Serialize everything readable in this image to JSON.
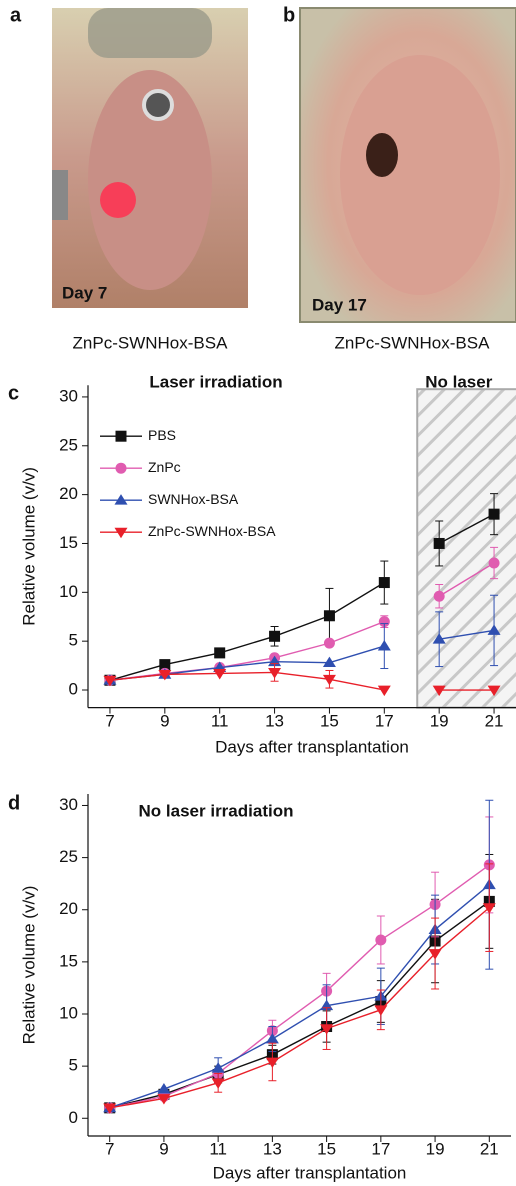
{
  "figure_panels": [
    {
      "label": "a",
      "day": "Day 7",
      "caption": "ZnPc-SWNHox-BSA"
    },
    {
      "label": "b",
      "day": "Day 17",
      "caption": "ZnPc-SWNHox-BSA"
    }
  ],
  "chart_data": [
    {
      "type": "line",
      "panel": "c",
      "title": "Laser irradiation",
      "x_label": "Days after transplantation",
      "y_label": "Relative volume (v/v)",
      "x": [
        7,
        9,
        11,
        13,
        15,
        17,
        19,
        21
      ],
      "xlim": [
        6.2,
        21.8
      ],
      "ylim": [
        -1.8,
        31.2
      ],
      "xticks": [
        7,
        9,
        11,
        13,
        15,
        17,
        19,
        21
      ],
      "yticks": [
        0,
        5,
        10,
        15,
        20,
        25,
        30
      ],
      "legend": "upper left",
      "shaded_region": {
        "label": "No laser",
        "from": 18.2
      },
      "series": [
        {
          "name": "PBS",
          "color": "#111111",
          "marker": "square",
          "values": [
            1,
            2.6,
            3.8,
            5.5,
            7.6,
            11,
            15,
            18
          ],
          "errors": [
            null,
            null,
            null,
            1,
            2.8,
            2.2,
            2.3,
            2.1
          ]
        },
        {
          "name": "ZnPc",
          "color": "#e05cb0",
          "marker": "circle",
          "values": [
            1,
            1.7,
            2.3,
            3.3,
            4.8,
            7,
            9.6,
            13
          ],
          "errors": [
            null,
            null,
            null,
            null,
            null,
            0.6,
            1.2,
            1.6
          ]
        },
        {
          "name": "SWNHox-BSA",
          "color": "#2f4fb0",
          "marker": "triangle-up",
          "values": [
            1,
            1.6,
            2.3,
            2.9,
            2.8,
            4.5,
            5.2,
            6.1
          ],
          "errors": [
            null,
            null,
            null,
            null,
            null,
            2.3,
            2.8,
            3.6
          ]
        },
        {
          "name": "ZnPc-SWNHox-BSA",
          "color": "#e8202a",
          "marker": "triangle-down",
          "values": [
            1,
            1.6,
            1.7,
            1.8,
            1.1,
            0,
            0,
            0
          ],
          "errors": [
            null,
            null,
            null,
            0.9,
            0.9,
            null,
            null,
            null
          ]
        }
      ]
    },
    {
      "type": "line",
      "panel": "d",
      "title": "No laser irradiation",
      "x_label": "Days after transplantation",
      "y_label": "Relative volume (v/v)",
      "x": [
        7,
        9,
        11,
        13,
        15,
        17,
        19,
        21
      ],
      "xlim": [
        6.2,
        21.8
      ],
      "ylim": [
        -1.7,
        31.1
      ],
      "xticks": [
        7,
        9,
        11,
        13,
        15,
        17,
        19,
        21
      ],
      "yticks": [
        0,
        5,
        10,
        15,
        20,
        25,
        30
      ],
      "series": [
        {
          "color": "#111111",
          "marker": "square",
          "values": [
            1,
            2.3,
            4.2,
            6.1,
            8.8,
            11.2,
            17,
            20.8
          ],
          "errors": [
            null,
            null,
            0.8,
            0.9,
            1.5,
            2,
            4,
            4.5
          ]
        },
        {
          "color": "#e05cb0",
          "marker": "circle",
          "values": [
            1,
            2.1,
            4.3,
            8.4,
            12.2,
            17.1,
            20.5,
            24.3
          ],
          "errors": [
            null,
            null,
            null,
            1,
            1.7,
            2.3,
            3.1,
            4.6
          ]
        },
        {
          "color": "#2f4fb0",
          "marker": "triangle-up",
          "values": [
            1,
            2.8,
            4.8,
            7.6,
            10.8,
            11.7,
            18.1,
            22.4
          ],
          "errors": [
            null,
            null,
            1,
            1.2,
            2,
            2.7,
            3.3,
            8.1
          ]
        },
        {
          "color": "#e8202a",
          "marker": "triangle-down",
          "values": [
            1,
            1.9,
            3.4,
            5.4,
            8.6,
            10.4,
            15.8,
            20.2
          ],
          "errors": [
            null,
            null,
            0.9,
            1.8,
            2,
            1.9,
            3.4,
            4.2
          ]
        }
      ]
    }
  ]
}
